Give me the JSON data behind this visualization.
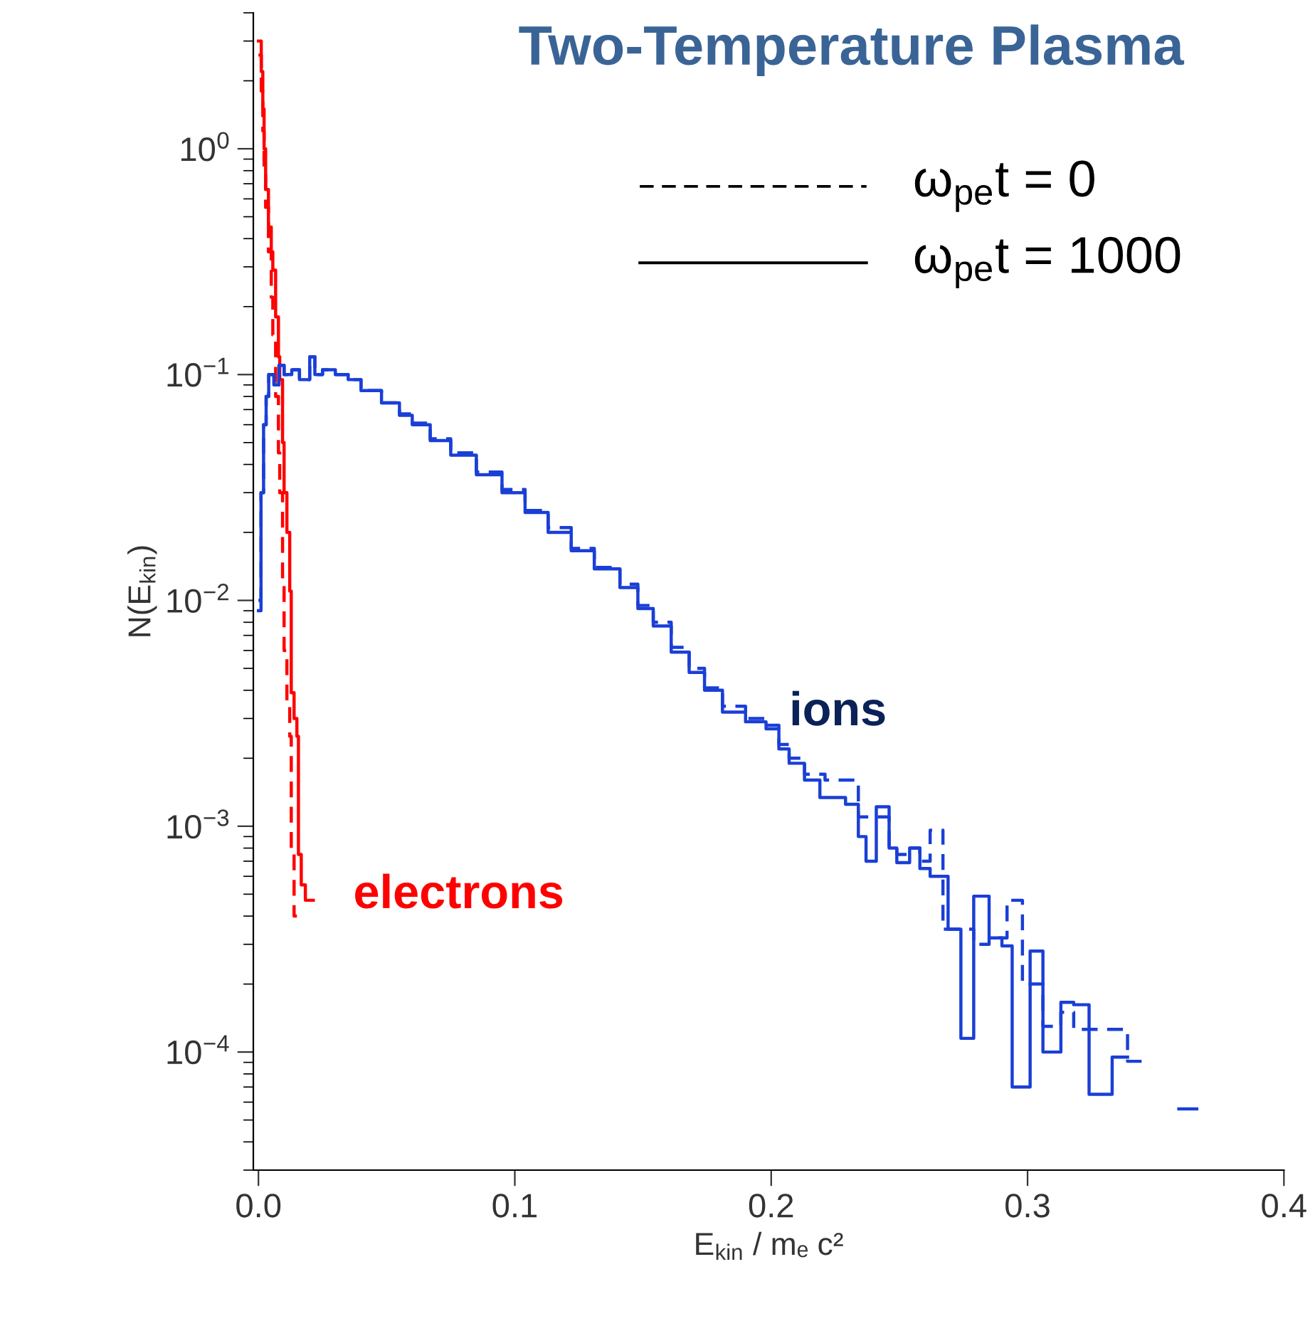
{
  "chart_data": {
    "type": "step",
    "title": "Two-Temperature Plasma",
    "xlabel": "E$_{kin}$ / mₑ c²",
    "ylabel": "N(E$_{kin}$)",
    "log": "y",
    "grid": false,
    "xlim": [
      -0.002,
      0.4
    ],
    "ylim": [
      3e-05,
      4
    ],
    "xticks": [
      {
        "value": 0,
        "label": "0.0"
      },
      0.1,
      0.2,
      0.3,
      0.4
    ],
    "yticks": [
      {
        "value": 0.0001,
        "label": "10$^{−4}$"
      },
      {
        "value": 0.001,
        "label": "10$^{−3}$"
      },
      {
        "value": 0.01,
        "label": "10$^{−2}$"
      },
      {
        "value": 0.1,
        "label": "10$^{−1}$"
      },
      {
        "value": 1,
        "label": "10$^{0}$"
      }
    ],
    "series": [
      {
        "color": "#ff0000",
        "line_style": "dashed",
        "x": [
          0,
          0.0011,
          0.0017,
          0.0022,
          0.0028,
          0.0039,
          0.005,
          0.0056,
          0.0067,
          0.0078,
          0.0083,
          0.0094,
          0.01,
          0.0111,
          0.0122,
          0.0128,
          0.0139,
          0.015
        ],
        "values": [
          2.6,
          1.8,
          1.2,
          0.8,
          0.55,
          0.35,
          0.22,
          0.15,
          0.08,
          0.045,
          0.03,
          0.012,
          0.006,
          0.0035,
          0.0025,
          0.0008,
          0.0004,
          0.0004
        ]
      },
      {
        "color": "#ff0000",
        "line_style": "solid",
        "x": [
          0,
          0.0011,
          0.0017,
          0.0022,
          0.0028,
          0.0039,
          0.005,
          0.0056,
          0.0067,
          0.0078,
          0.0083,
          0.0094,
          0.01,
          0.0111,
          0.0122,
          0.0128,
          0.0139,
          0.015,
          0.0156,
          0.0167,
          0.0183,
          0.0214
        ],
        "values": [
          3.0,
          2.2,
          1.5,
          1.0,
          0.66,
          0.45,
          0.35,
          0.29,
          0.18,
          0.12,
          0.095,
          0.05,
          0.03,
          0.02,
          0.011,
          0.0039,
          0.003,
          0.0025,
          0.00075,
          0.00055,
          0.00047,
          0.00047
        ]
      },
      {
        "color": "#1a3fd6",
        "line_style": "dashed",
        "x": [
          0,
          0.001,
          0.002,
          0.003,
          0.004,
          0.006,
          0.008,
          0.01,
          0.013,
          0.016,
          0.02,
          0.022,
          0.025,
          0.03,
          0.035,
          0.04,
          0.048,
          0.055,
          0.06,
          0.067,
          0.075,
          0.085,
          0.095,
          0.104,
          0.113,
          0.122,
          0.131,
          0.141,
          0.148,
          0.154,
          0.161,
          0.168,
          0.174,
          0.181,
          0.19,
          0.198,
          0.203,
          0.207,
          0.213,
          0.221,
          0.229,
          0.234,
          0.241,
          0.246,
          0.249,
          0.254,
          0.258,
          0.262,
          0.267,
          0.274,
          0.279,
          0.285,
          0.292,
          0.298,
          0.306,
          0.313,
          0.318,
          0.327,
          0.339,
          0.346
        ],
        "values": [
          0.01,
          0.03,
          0.06,
          0.08,
          0.1,
          0.09,
          0.11,
          0.1,
          0.105,
          0.095,
          0.12,
          0.1,
          0.105,
          0.1,
          0.095,
          0.085,
          0.075,
          0.067,
          0.061,
          0.052,
          0.045,
          0.037,
          0.031,
          0.025,
          0.021,
          0.017,
          0.014,
          0.0118,
          0.0095,
          0.008,
          0.0062,
          0.005,
          0.0041,
          0.0034,
          0.003,
          0.0028,
          0.0023,
          0.002,
          0.0017,
          0.0016,
          0.0016,
          0.0011,
          0.0011,
          0.0008,
          0.00075,
          0.0008,
          0.0007,
          0.00096,
          0.00035,
          0.00035,
          0.0003,
          0.00032,
          0.00047,
          0.0002,
          0.00013,
          0.00015,
          0.000126,
          0.000126,
          9.1e-05,
          9.1e-05
        ]
      },
      {
        "color": "#1a3fd6",
        "line_style": "solid",
        "x": [
          0,
          0.001,
          0.002,
          0.003,
          0.004,
          0.006,
          0.008,
          0.01,
          0.013,
          0.016,
          0.02,
          0.022,
          0.025,
          0.03,
          0.035,
          0.04,
          0.048,
          0.055,
          0.06,
          0.067,
          0.075,
          0.085,
          0.095,
          0.104,
          0.113,
          0.122,
          0.131,
          0.141,
          0.148,
          0.154,
          0.161,
          0.168,
          0.174,
          0.181,
          0.19,
          0.198,
          0.203,
          0.207,
          0.213,
          0.219,
          0.229,
          0.234,
          0.237,
          0.241,
          0.246,
          0.249,
          0.254,
          0.258,
          0.262,
          0.269,
          0.274,
          0.279,
          0.285,
          0.29,
          0.294,
          0.301,
          0.306,
          0.313,
          0.318,
          0.324,
          0.333,
          0.339
        ],
        "values": [
          0.009,
          0.03,
          0.06,
          0.08,
          0.1,
          0.09,
          0.11,
          0.1,
          0.105,
          0.095,
          0.12,
          0.1,
          0.105,
          0.1,
          0.095,
          0.085,
          0.075,
          0.066,
          0.06,
          0.051,
          0.044,
          0.036,
          0.03,
          0.0245,
          0.02,
          0.0166,
          0.0138,
          0.0114,
          0.0092,
          0.0077,
          0.0059,
          0.0048,
          0.004,
          0.0032,
          0.0029,
          0.0027,
          0.0022,
          0.0019,
          0.0016,
          0.00134,
          0.00125,
          0.0009,
          0.0007,
          0.00122,
          0.0008,
          0.00069,
          0.0008,
          0.00065,
          0.0006,
          0.00035,
          0.000115,
          0.00049,
          0.00032,
          0.000295,
          7e-05,
          0.00028,
          0.0001,
          0.000166,
          0.000162,
          6.5e-05,
          9.5e-05,
          9.5e-05
        ]
      },
      {
        "color": "#1a3fd6",
        "line_style": "solid",
        "x": [
          0.359,
          0.366
        ],
        "values": [
          5.6e-05,
          5.6e-05
        ]
      }
    ],
    "annotations": [
      "electrons",
      "ions",
      "ω$_{pe}$t = 0",
      "ω$_{pe}$t = 1000"
    ]
  }
}
